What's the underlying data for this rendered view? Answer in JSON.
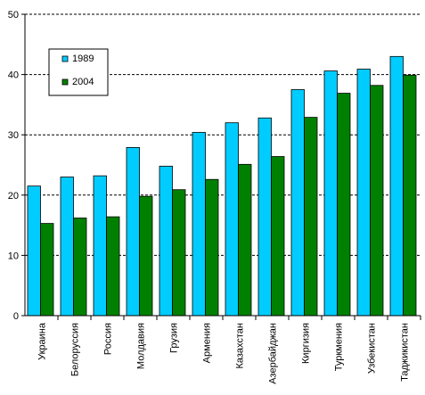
{
  "chart_data": {
    "type": "bar",
    "categories": [
      "Украина",
      "Белоруссия",
      "Россия",
      "Молдавия",
      "Грузия",
      "Армения",
      "Казахстан",
      "Азербайджан",
      "Киргизия",
      "Туркмения",
      "Узбекистан",
      "Таджикистан"
    ],
    "series": [
      {
        "name": "1989",
        "values": [
          21.5,
          23.0,
          23.2,
          27.9,
          24.8,
          30.4,
          32.0,
          32.8,
          37.5,
          40.6,
          40.9,
          43.0
        ]
      },
      {
        "name": "2004",
        "values": [
          15.3,
          16.2,
          16.4,
          19.8,
          20.9,
          22.6,
          25.1,
          26.4,
          32.9,
          36.9,
          38.2,
          39.9
        ]
      }
    ],
    "ylim": [
      0,
      50
    ],
    "yticks": [
      "0",
      "10",
      "20",
      "30",
      "40",
      "50"
    ],
    "gridlines": "dashed",
    "legend_position": "top-left",
    "colors": {
      "1989": "#00ccff",
      "2004": "#008000"
    },
    "title": "",
    "xlabel": "",
    "ylabel": ""
  }
}
